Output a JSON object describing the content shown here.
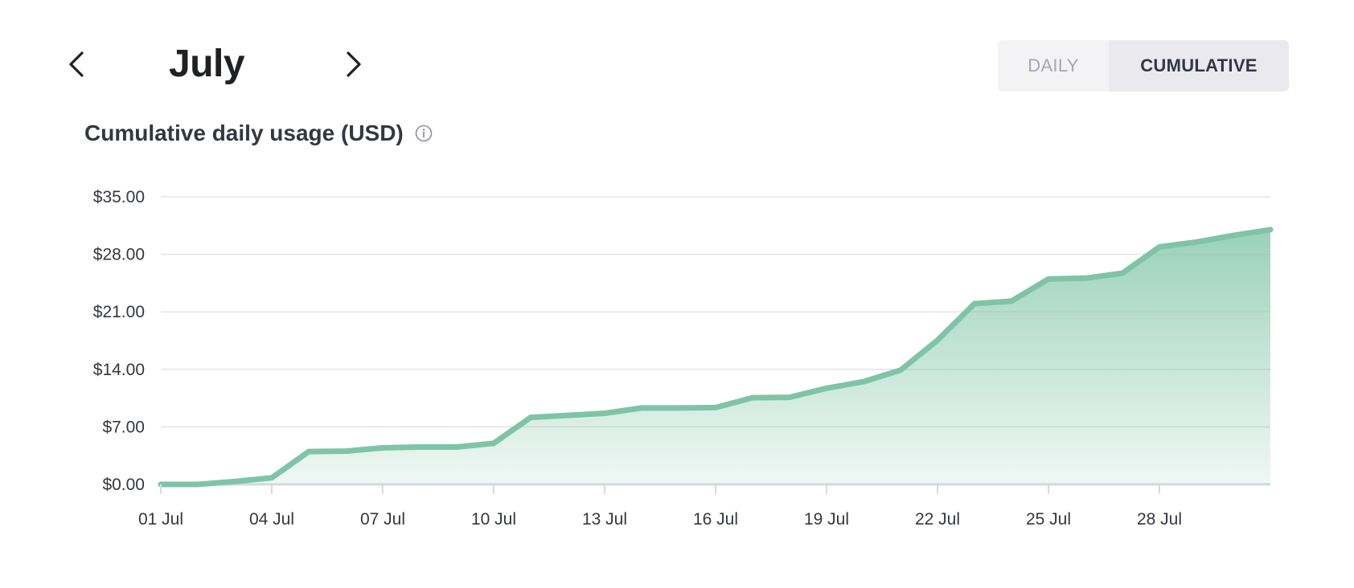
{
  "header": {
    "month": "July",
    "prev_icon": "chevron-left-icon",
    "next_icon": "chevron-right-icon"
  },
  "toggle": {
    "daily_label": "DAILY",
    "cumulative_label": "CUMULATIVE",
    "selected": "cumulative"
  },
  "chart_data": {
    "type": "area",
    "title": "Cumulative daily usage (USD)",
    "info_icon": "info-icon",
    "x": [
      "01 Jul",
      "02 Jul",
      "03 Jul",
      "04 Jul",
      "05 Jul",
      "06 Jul",
      "07 Jul",
      "08 Jul",
      "09 Jul",
      "10 Jul",
      "11 Jul",
      "12 Jul",
      "13 Jul",
      "14 Jul",
      "15 Jul",
      "16 Jul",
      "17 Jul",
      "18 Jul",
      "19 Jul",
      "20 Jul",
      "21 Jul",
      "22 Jul",
      "23 Jul",
      "24 Jul",
      "25 Jul",
      "26 Jul",
      "27 Jul",
      "28 Jul",
      "29 Jul",
      "30 Jul",
      "31 Jul"
    ],
    "x_tick_labels": [
      "01 Jul",
      "04 Jul",
      "07 Jul",
      "10 Jul",
      "13 Jul",
      "16 Jul",
      "19 Jul",
      "22 Jul",
      "25 Jul",
      "28 Jul"
    ],
    "values": [
      0.0,
      0.0,
      0.35,
      0.8,
      4.0,
      4.05,
      4.45,
      4.55,
      4.55,
      5.0,
      8.15,
      8.4,
      8.65,
      9.3,
      9.3,
      9.35,
      10.55,
      10.6,
      11.7,
      12.5,
      13.9,
      17.55,
      22.0,
      22.3,
      25.0,
      25.1,
      25.7,
      28.9,
      29.5,
      30.3,
      31.0
    ],
    "y_ticks": [
      0,
      7,
      14,
      21,
      28,
      35
    ],
    "y_tick_labels": [
      "$0.00",
      "$7.00",
      "$14.00",
      "$21.00",
      "$28.00",
      "$35.00"
    ],
    "ylim": [
      0,
      35
    ],
    "grid": true,
    "legend": "none",
    "color": "#7fc4a8"
  }
}
